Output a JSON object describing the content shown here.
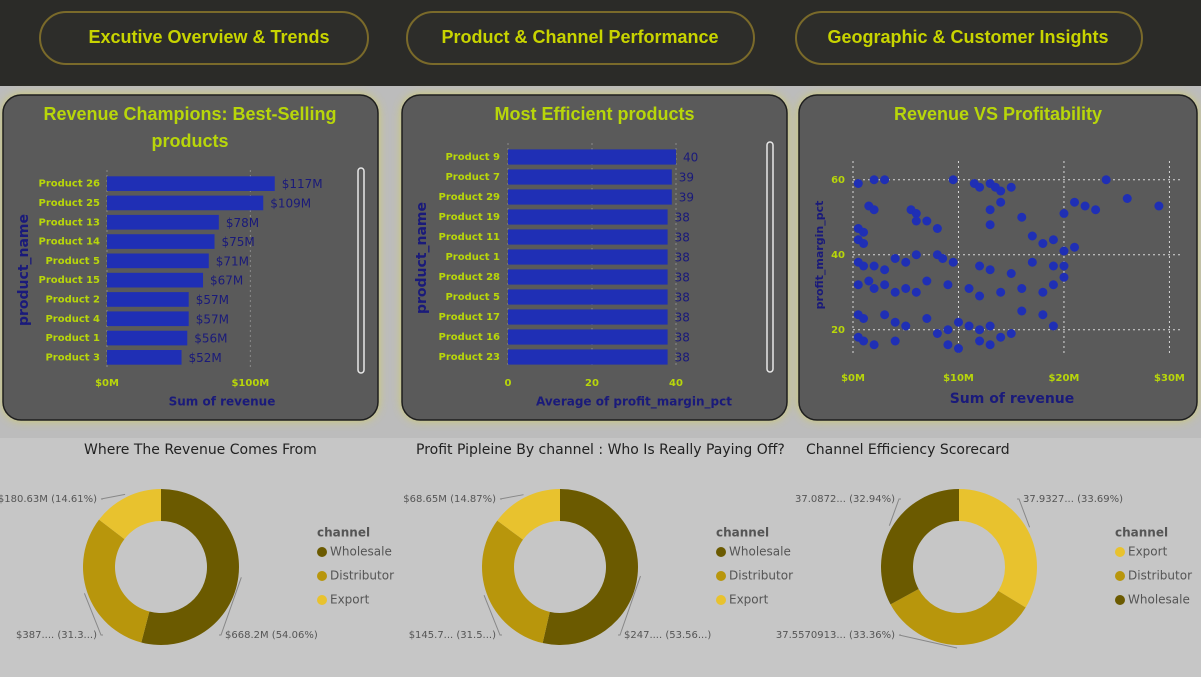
{
  "nav": [
    "Excutive Overview & Trends",
    "Product & Channel Performance",
    "Geographic & Customer Insights"
  ],
  "chart_data": [
    {
      "type": "hbar",
      "title": "Revenue Champions: Best-Selling products",
      "x_label": "Sum of revenue",
      "y_label": "product_name",
      "categories": [
        "Product 26",
        "Product 25",
        "Product 13",
        "Product 14",
        "Product 5",
        "Product 15",
        "Product 2",
        "Product 4",
        "Product 1",
        "Product 3"
      ],
      "values": [
        117,
        109,
        78,
        75,
        71,
        67,
        57,
        57,
        56,
        52
      ],
      "value_labels": [
        "$117M",
        "$109M",
        "$78M",
        "$75M",
        "$71M",
        "$67M",
        "$57M",
        "$57M",
        "$56M",
        "$52M"
      ],
      "color": "#1f2fb5",
      "xlim": [
        0,
        173
      ],
      "xticks": [
        {
          "value": 0,
          "label": "$0M"
        },
        {
          "value": 100,
          "label": "$100M"
        }
      ],
      "grid": true
    },
    {
      "type": "hbar",
      "title": "Most Efficient products",
      "x_label": "Average of profit_margin_pct",
      "y_label": "product_name",
      "categories": [
        "Product 9",
        "Product 7",
        "Product 29",
        "Product 19",
        "Product 11",
        "Product 1",
        "Product 28",
        "Product 5",
        "Product 17",
        "Product 16",
        "Product 23"
      ],
      "values": [
        40,
        39,
        39,
        38,
        38,
        38,
        38,
        38,
        38,
        38,
        38
      ],
      "color": "#1f2fb5",
      "xlim": [
        0,
        60
      ],
      "xticks": [
        0,
        20,
        40
      ],
      "grid": true
    },
    {
      "type": "scatter",
      "title": "Revenue VS Profitability",
      "x_label": "Sum of revenue",
      "y_label": "profit_margin_pct",
      "color": "#1f2fb5",
      "x": [
        0.5,
        2,
        3,
        9.5,
        11.5,
        12,
        13,
        13.5,
        14,
        15,
        24,
        26,
        29,
        1.5,
        2,
        5.5,
        6,
        14,
        13,
        16,
        20,
        21,
        22,
        23,
        0.5,
        1,
        0.5,
        1,
        6,
        7,
        8,
        13,
        17,
        18,
        19,
        20,
        21,
        0.5,
        1,
        2,
        3,
        4,
        5,
        6,
        8,
        8.5,
        9.5,
        12,
        13,
        15,
        17,
        19,
        20,
        0.5,
        1.5,
        2,
        3,
        4,
        5,
        6,
        7,
        9,
        11,
        12,
        14,
        16,
        18,
        19,
        20,
        0.5,
        1,
        3,
        4,
        5,
        7,
        9,
        10,
        11,
        12,
        13,
        14,
        15,
        16,
        18,
        19,
        0.5,
        1,
        2,
        4,
        8,
        9,
        10,
        12,
        13
      ],
      "y": [
        59,
        60,
        60,
        60,
        59,
        58,
        59,
        58,
        57,
        58,
        60,
        55,
        53,
        53,
        52,
        52,
        51,
        54,
        52,
        50,
        51,
        54,
        53,
        52,
        47,
        46,
        44,
        43,
        49,
        49,
        47,
        48,
        45,
        43,
        44,
        41,
        42,
        38,
        37,
        37,
        36,
        39,
        38,
        40,
        40,
        39,
        38,
        37,
        36,
        35,
        38,
        37,
        37,
        32,
        33,
        31,
        32,
        30,
        31,
        30,
        33,
        32,
        31,
        29,
        30,
        31,
        30,
        32,
        34,
        24,
        23,
        24,
        22,
        21,
        23,
        20,
        22,
        21,
        20,
        21,
        18,
        19,
        25,
        24,
        21,
        18,
        17,
        16,
        17,
        19,
        16,
        15,
        17,
        16
      ],
      "xlim": [
        0,
        31
      ],
      "ylim": [
        13,
        65
      ],
      "xticks": [
        {
          "value": 0,
          "label": "$0M"
        },
        {
          "value": 10,
          "label": "$10M"
        },
        {
          "value": 20,
          "label": "$20M"
        },
        {
          "value": 30,
          "label": "$30M"
        }
      ],
      "yticks": [
        20,
        40,
        60
      ],
      "grid": true
    },
    {
      "type": "donut",
      "title": "Where The Revenue Comes From",
      "legend_title": "channel",
      "categories": [
        "Wholesale",
        "Distributor",
        "Export"
      ],
      "values": [
        668.2,
        387.2,
        180.63
      ],
      "value_labels": [
        "$668.2M (54.06%)",
        "$387.... (31.3...)",
        "$180.63M (14.61%)"
      ],
      "colors": [
        "#6b5a00",
        "#b8960c",
        "#e8c22e"
      ]
    },
    {
      "type": "donut",
      "title": "Profit Pipleine By channel : Who Is Really Paying Off?",
      "legend_title": "channel",
      "categories": [
        "Wholesale",
        "Distributor",
        "Export"
      ],
      "values": [
        247.3,
        145.7,
        68.65
      ],
      "value_labels": [
        "$247.... (53.56...)",
        "$145.7... (31.5...)",
        "$68.65M (14.87%)"
      ],
      "colors": [
        "#6b5a00",
        "#b8960c",
        "#e8c22e"
      ]
    },
    {
      "type": "donut",
      "title": "Channel Efficiency Scorecard",
      "legend_title": "channel",
      "categories": [
        "Export",
        "Distributor",
        "Wholesale"
      ],
      "values": [
        37.9327,
        37.5570913,
        37.0872
      ],
      "value_labels": [
        "37.9327... (33.69%)",
        "37.5570913... (33.36%)",
        "37.0872... (32.94%)"
      ],
      "colors": [
        "#e8c22e",
        "#b8960c",
        "#6b5a00"
      ]
    }
  ]
}
